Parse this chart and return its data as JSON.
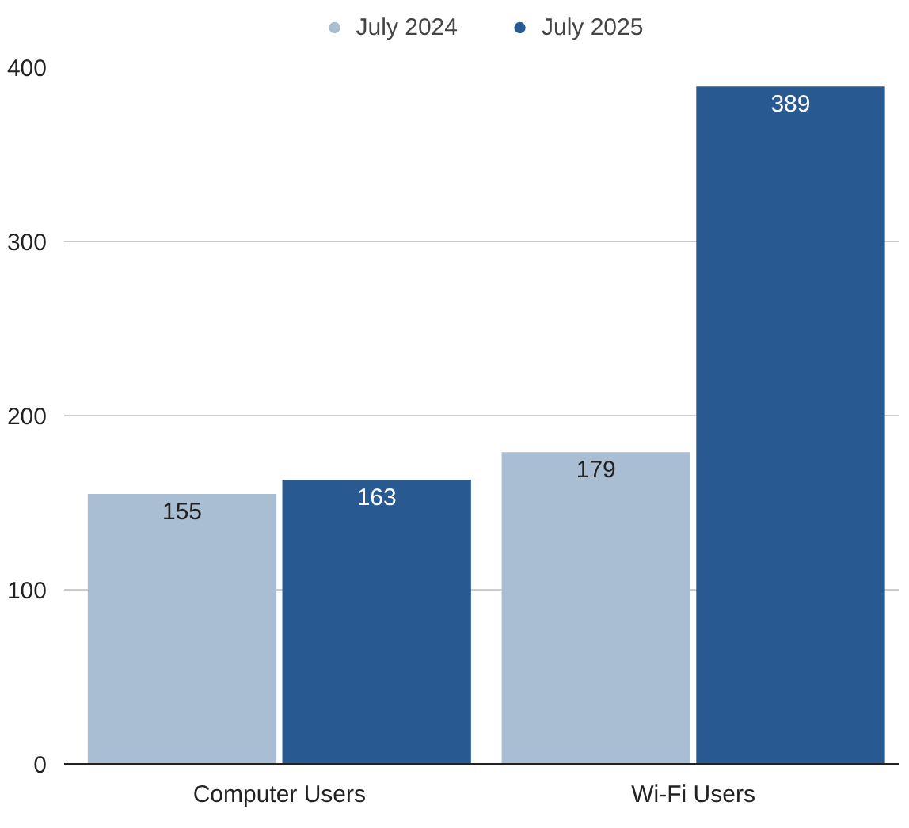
{
  "chart_data": {
    "type": "bar",
    "categories": [
      "Computer Users",
      "Wi-Fi Users"
    ],
    "series": [
      {
        "name": "July 2024",
        "color": "#a9bdd3",
        "values": [
          155,
          179
        ]
      },
      {
        "name": "July 2025",
        "color": "#285a91",
        "values": [
          163,
          389
        ]
      }
    ],
    "ylim": [
      0,
      400
    ],
    "yticks": [
      0,
      100,
      200,
      300,
      400
    ],
    "grid": "y",
    "legend": "top",
    "data_labels": true
  }
}
